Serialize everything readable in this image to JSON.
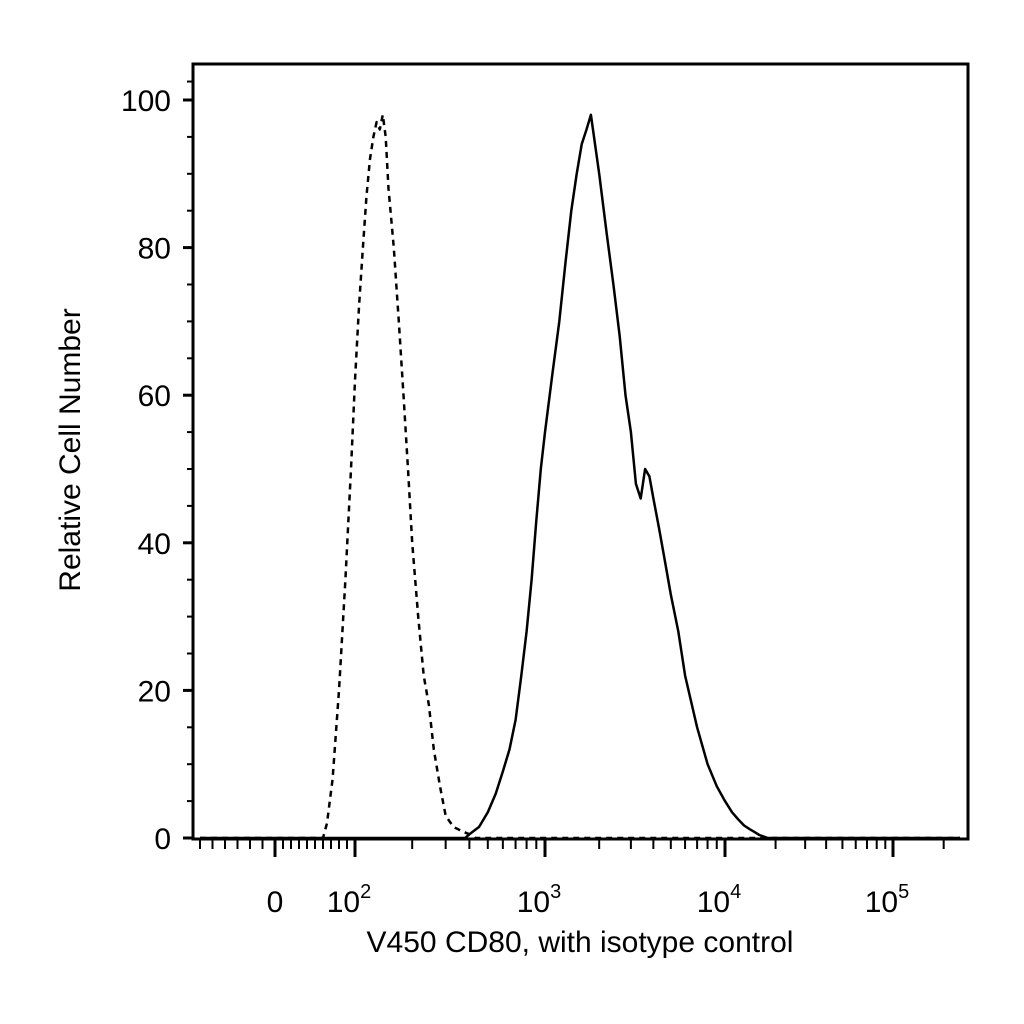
{
  "chart_data": {
    "type": "line",
    "title": "",
    "xlabel": "V450 CD80, with isotype control",
    "ylabel": "Relative Cell Number",
    "x_scale": "biexponential",
    "xlim": [
      -60,
      250000
    ],
    "ylim": [
      0,
      105
    ],
    "grid": false,
    "legend": "none",
    "y_ticks": [
      0,
      20,
      40,
      60,
      80,
      100
    ],
    "x_ticks": [
      {
        "value": 0,
        "base": "0",
        "exp": ""
      },
      {
        "value": 100,
        "base": "10",
        "exp": "2"
      },
      {
        "value": 1000,
        "base": "10",
        "exp": "3"
      },
      {
        "value": 10000,
        "base": "10",
        "exp": "4"
      },
      {
        "value": 100000,
        "base": "10",
        "exp": "5"
      }
    ],
    "series": [
      {
        "style": "dashed",
        "x": [
          -60,
          60,
          65,
          72,
          80,
          88,
          95,
          100,
          105,
          110,
          115,
          120,
          125,
          130,
          135,
          140,
          145,
          150,
          160,
          170,
          180,
          190,
          200,
          215,
          230,
          245,
          260,
          280,
          300,
          330,
          360,
          400,
          430,
          480,
          250000
        ],
        "y": [
          0,
          0,
          2,
          8,
          20,
          35,
          50,
          62,
          72,
          80,
          87,
          92,
          95,
          97,
          96,
          98,
          95,
          88,
          80,
          70,
          60,
          50,
          40,
          30,
          22,
          18,
          12,
          7,
          3,
          1.5,
          1,
          0.5,
          0,
          0,
          0
        ]
      },
      {
        "style": "solid",
        "x": [
          -60,
          380,
          400,
          450,
          500,
          550,
          600,
          650,
          700,
          750,
          800,
          850,
          900,
          950,
          1000,
          1100,
          1200,
          1300,
          1400,
          1500,
          1600,
          1700,
          1800,
          2000,
          2200,
          2400,
          2600,
          2800,
          3000,
          3200,
          3400,
          3600,
          3800,
          4000,
          4300,
          4600,
          5000,
          5500,
          6000,
          7000,
          8000,
          9000,
          10000,
          11000,
          12000,
          13000,
          14000,
          15000,
          16000,
          17000,
          18000,
          250000
        ],
        "y": [
          0,
          0,
          0.5,
          1.5,
          3.5,
          6,
          9,
          12,
          16,
          22,
          28,
          35,
          43,
          50,
          55,
          63,
          70,
          78,
          85,
          90,
          94,
          96,
          98,
          90,
          82,
          75,
          68,
          60,
          55,
          48,
          46,
          50,
          49,
          46,
          42,
          38,
          33,
          28,
          22,
          15,
          10,
          7,
          5,
          3.5,
          2.5,
          1.7,
          1.2,
          0.8,
          0.4,
          0.2,
          0,
          0
        ]
      }
    ]
  }
}
